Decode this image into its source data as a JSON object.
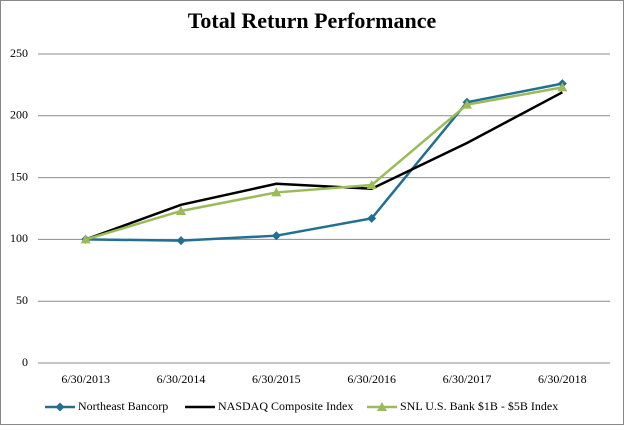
{
  "chart_data": {
    "type": "line",
    "title": "Total Return Performance",
    "categories": [
      "6/30/2013",
      "6/30/2014",
      "6/30/2015",
      "6/30/2016",
      "6/30/2017",
      "6/30/2018"
    ],
    "series": [
      {
        "name": "Northeast Bancorp",
        "color": "#22708f",
        "marker": "diamond",
        "values": [
          100,
          99,
          103,
          117,
          211,
          226
        ]
      },
      {
        "name": "NASDAQ Composite Index",
        "color": "#000000",
        "marker": "none",
        "values": [
          100,
          128,
          145,
          141,
          178,
          219
        ]
      },
      {
        "name": "SNL U.S. Bank $1B - $5B Index",
        "color": "#9bbb59",
        "marker": "triangle",
        "values": [
          100,
          123,
          138,
          144,
          209,
          223
        ]
      }
    ],
    "ylim": [
      0,
      250
    ],
    "yticks": [
      0,
      50,
      100,
      150,
      200,
      250
    ],
    "grid": true,
    "legend": "bottom"
  }
}
